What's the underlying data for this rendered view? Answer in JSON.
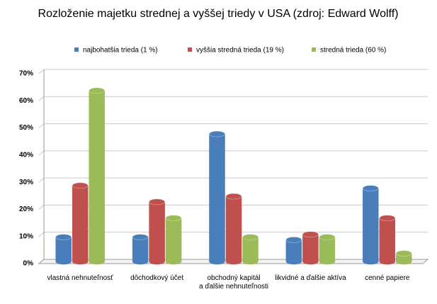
{
  "chart_data": {
    "type": "bar3d",
    "title": "Rozloženie majetku strednej a vyššej triedy v USA (zdroj: Edward Wolff)",
    "categories": [
      "vlastná nehnuteľnosť",
      "dôchodkový účet",
      "obchodný kapitál\na ďalšie nehnuteľnosti",
      "likvidné a ďalšie aktíva",
      "cenné papiere"
    ],
    "series": [
      {
        "name": "najbohatšia trieda (1 %)",
        "color": "#4a7ebb",
        "values": [
          9,
          9,
          47,
          8,
          27
        ]
      },
      {
        "name": "vyššia stredná trieda (19 %)",
        "color": "#c0504d",
        "values": [
          28,
          22,
          24,
          10,
          16
        ]
      },
      {
        "name": "stredná trieda (60 %)",
        "color": "#9bbb59",
        "values": [
          63,
          16,
          9,
          9,
          3
        ]
      }
    ],
    "ylim": [
      0,
      70
    ],
    "yticks": [
      {
        "value": 0,
        "label": "0%"
      },
      {
        "value": 10,
        "label": "10%"
      },
      {
        "value": 20,
        "label": "20%"
      },
      {
        "value": 30,
        "label": "30%"
      },
      {
        "value": 40,
        "label": "40%"
      },
      {
        "value": 50,
        "label": "50%"
      },
      {
        "value": 60,
        "label": "60%"
      },
      {
        "value": 70,
        "label": "70%"
      }
    ],
    "grid": true,
    "legend": "top"
  }
}
